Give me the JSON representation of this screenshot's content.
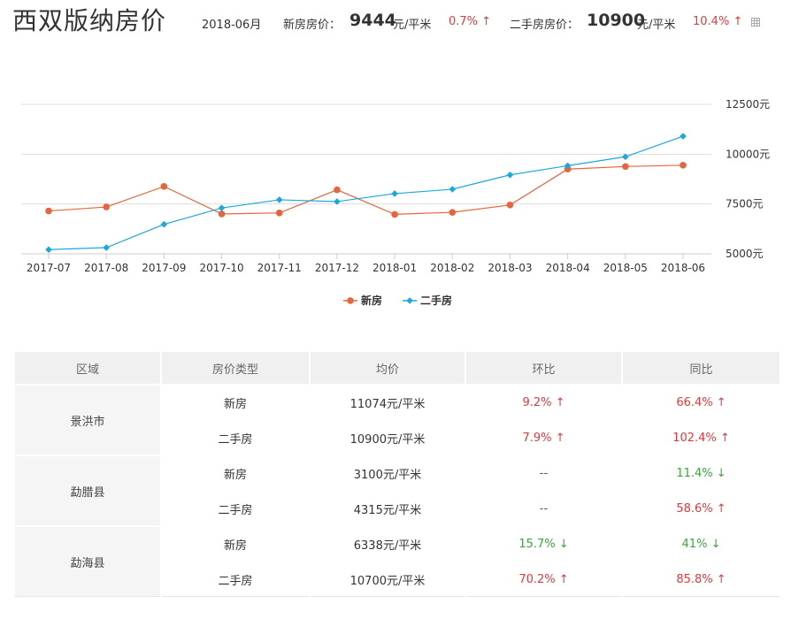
{
  "header": {
    "city_title": "西双版纳房价",
    "date": "2018-06月",
    "new_label": "新房房价：",
    "new_price": "9444",
    "new_unit": "元/平米",
    "new_change": "0.7%",
    "new_change_arrow": "↑",
    "secondhand_label": "二手房房价：",
    "secondhand_price": "10900",
    "secondhand_unit": "元/平米",
    "secondhand_change": "10.4%",
    "secondhand_change_arrow": "↑",
    "grid_icon": "grid-icon"
  },
  "colors": {
    "new_series": "#e8643c",
    "secondhand_series": "#1ca8dd",
    "up": "#e4393c",
    "down": "#3aa53a",
    "grid": "#dddddd"
  },
  "chart_data": {
    "type": "line",
    "categories": [
      "2017-07",
      "2017-08",
      "2017-09",
      "2017-10",
      "2017-11",
      "2017-12",
      "2018-01",
      "2018-02",
      "2018-03",
      "2018-04",
      "2018-05",
      "2018-06"
    ],
    "series": [
      {
        "name": "新房",
        "marker": "circle",
        "values": [
          7150,
          7350,
          8380,
          7000,
          7050,
          8210,
          6980,
          7080,
          7450,
          9250,
          9380,
          9444
        ]
      },
      {
        "name": "二手房",
        "marker": "diamond",
        "values": [
          5210,
          5310,
          6480,
          7300,
          7710,
          7620,
          8020,
          8240,
          8960,
          9420,
          9870,
          10900
        ]
      }
    ],
    "y_ticks": [
      5000,
      7500,
      10000,
      12500
    ],
    "y_tick_suffix": "元",
    "ylim": [
      5000,
      12500
    ],
    "y_axis_position": "right",
    "grid": true,
    "legend_position": "bottom"
  },
  "table": {
    "headers": [
      "区域",
      "房价类型",
      "均价",
      "环比",
      "同比"
    ],
    "regions": [
      {
        "name": "景洪市",
        "rows": [
          {
            "type": "新房",
            "price": "11074元/平米",
            "mom": "9.2%",
            "mom_dir": "up",
            "yoy": "66.4%",
            "yoy_dir": "up"
          },
          {
            "type": "二手房",
            "price": "10900元/平米",
            "mom": "7.9%",
            "mom_dir": "up",
            "yoy": "102.4%",
            "yoy_dir": "up"
          }
        ]
      },
      {
        "name": "勐腊县",
        "rows": [
          {
            "type": "新房",
            "price": "3100元/平米",
            "mom": "--",
            "mom_dir": "none",
            "yoy": "11.4%",
            "yoy_dir": "down"
          },
          {
            "type": "二手房",
            "price": "4315元/平米",
            "mom": "--",
            "mom_dir": "none",
            "yoy": "58.6%",
            "yoy_dir": "up"
          }
        ]
      },
      {
        "name": "勐海县",
        "rows": [
          {
            "type": "新房",
            "price": "6338元/平米",
            "mom": "15.7%",
            "mom_dir": "down",
            "yoy": "41%",
            "yoy_dir": "down"
          },
          {
            "type": "二手房",
            "price": "10700元/平米",
            "mom": "70.2%",
            "mom_dir": "up",
            "yoy": "85.8%",
            "yoy_dir": "up"
          }
        ]
      }
    ]
  }
}
